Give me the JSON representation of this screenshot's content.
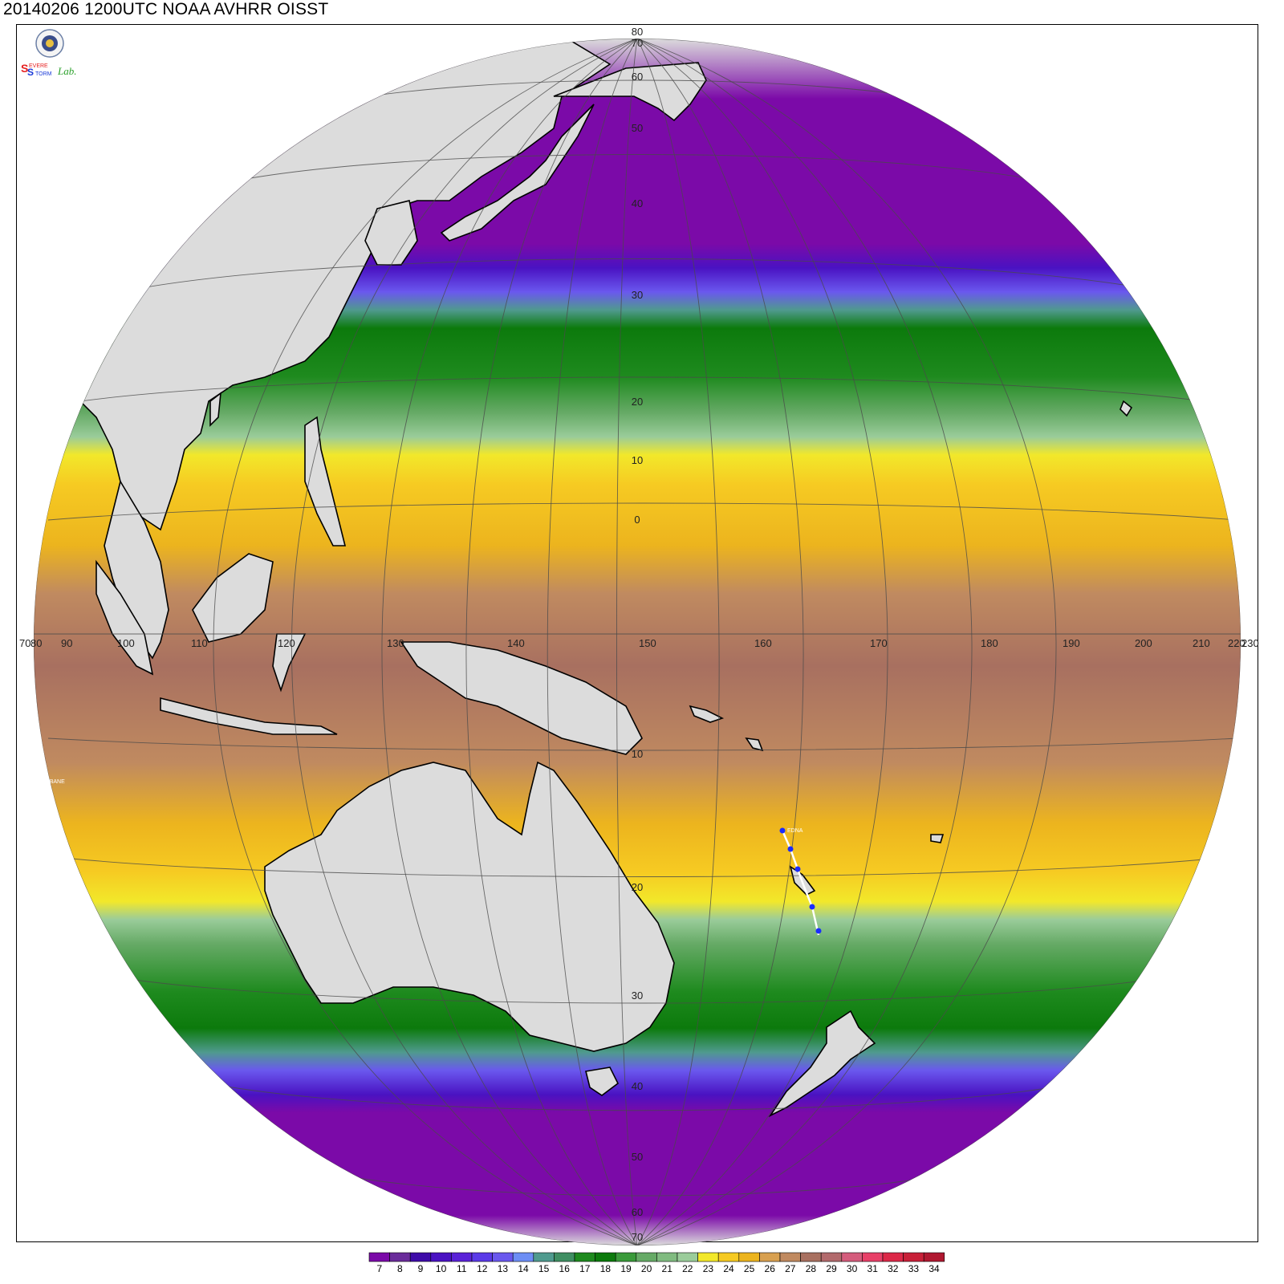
{
  "title": "20140206 1200UTC NOAA AVHRR OISST",
  "logo": {
    "text_s1": "S",
    "text_evere": "EVERE",
    "text_s2": "S",
    "text_torm": "TORM",
    "text_lab": "Lab."
  },
  "map": {
    "projection": "orthographic",
    "ocean_shading": "sea surface temperature",
    "land_color": "#dcdcdc",
    "lat_labels": [
      "80",
      "70",
      "60",
      "50",
      "40",
      "30",
      "20",
      "10",
      "0",
      "10",
      "20",
      "30",
      "40",
      "50",
      "60",
      "70"
    ],
    "lon_labels": [
      "70",
      "80",
      "90",
      "100",
      "110",
      "120",
      "130",
      "140",
      "150",
      "160",
      "170",
      "180",
      "190",
      "200",
      "210",
      "220",
      "230"
    ],
    "storms": [
      {
        "name": "EDNA",
        "track_color": "#ffffff",
        "point_color": "#1a2cff"
      },
      {
        "name": "FOBANE",
        "track_color": "#ff2020",
        "point_color": "#1a2cff"
      }
    ]
  },
  "colorbar": {
    "labels": [
      "7",
      "8",
      "9",
      "10",
      "11",
      "12",
      "13",
      "14",
      "15",
      "16",
      "17",
      "18",
      "19",
      "20",
      "21",
      "22",
      "23",
      "24",
      "25",
      "26",
      "27",
      "28",
      "29",
      "30",
      "31",
      "32",
      "33",
      "34"
    ],
    "colors": [
      "#7b0aa8",
      "#6a2c9a",
      "#3e0ba8",
      "#4a12c2",
      "#5a22d8",
      "#5a3ae8",
      "#6a58ee",
      "#6d8ef5",
      "#4f9a8e",
      "#3f8e62",
      "#1e8a1e",
      "#0c7a0c",
      "#3a9a3a",
      "#66aa66",
      "#80bb80",
      "#9acc9a",
      "#f2e82a",
      "#f6ca22",
      "#ecb41e",
      "#d8a050",
      "#c08a60",
      "#a87060",
      "#b26a6c",
      "#d45c7c",
      "#e84068",
      "#dc2848",
      "#c82038",
      "#b01830"
    ]
  }
}
